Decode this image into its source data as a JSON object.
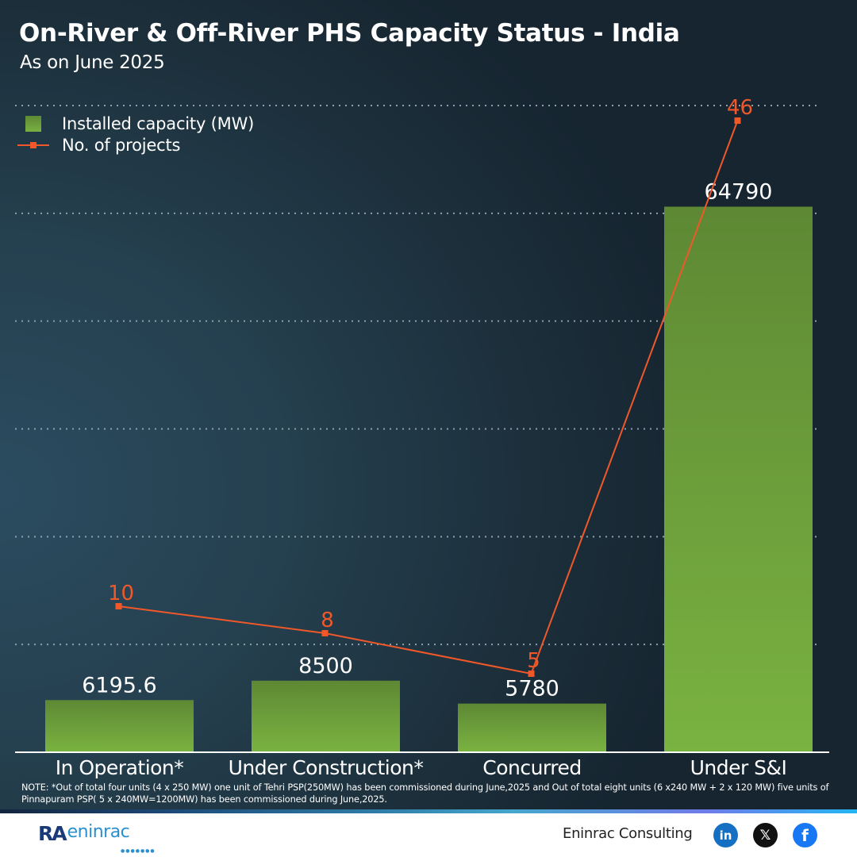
{
  "header": {
    "title": "On-River & Off-River PHS Capacity Status - India",
    "subtitle": "As on June 2025"
  },
  "legend": {
    "items": [
      {
        "label": "Installed capacity (MW)",
        "type": "bar",
        "color": "#6fa43c"
      },
      {
        "label": "No. of projects",
        "type": "line",
        "color": "#f0582a"
      }
    ]
  },
  "chart_data": {
    "type": "bar",
    "title": "On-River & Off-River PHS Capacity Status - India",
    "subtitle": "As on June 2025",
    "categories": [
      "In Operation*",
      "Under Construction*",
      "Concurred",
      "Under S&I"
    ],
    "series": [
      {
        "name": "Installed capacity (MW)",
        "type": "bar",
        "axis": "primary",
        "values": [
          6195.6,
          8500,
          5780,
          64790
        ],
        "labels": [
          "6195.6",
          "8500",
          "5780",
          "64790"
        ],
        "color": "#6fa43c"
      },
      {
        "name": "No. of projects",
        "type": "line",
        "axis": "secondary",
        "values": [
          10,
          8,
          5,
          46
        ],
        "labels": [
          "10",
          "8",
          "5",
          "46"
        ],
        "color": "#f0582a"
      }
    ],
    "xlabel": "",
    "ylabel": "",
    "ylim": [
      0,
      76800
    ],
    "y2lim": [
      0,
      48
    ],
    "gridlines": 6,
    "grid": true,
    "legend_position": "top-left"
  },
  "note": "NOTE: *Out of total four units (4 x 250 MW) one unit of Tehri PSP(250MW) has been commissioned during June,2025 and Out of total eight units (6 x240 MW + 2 x 120 MW) five units of Pinnapuram PSP( 5 x 240MW=1200MW) has been commissioned during June,2025.",
  "footer": {
    "logo_mark": "RA",
    "logo_text": "eninrac",
    "company": "Eninrac Consulting",
    "social": [
      {
        "name": "linkedin",
        "glyph": "in"
      },
      {
        "name": "x",
        "glyph": "𝕏"
      },
      {
        "name": "facebook",
        "glyph": "f"
      }
    ]
  }
}
